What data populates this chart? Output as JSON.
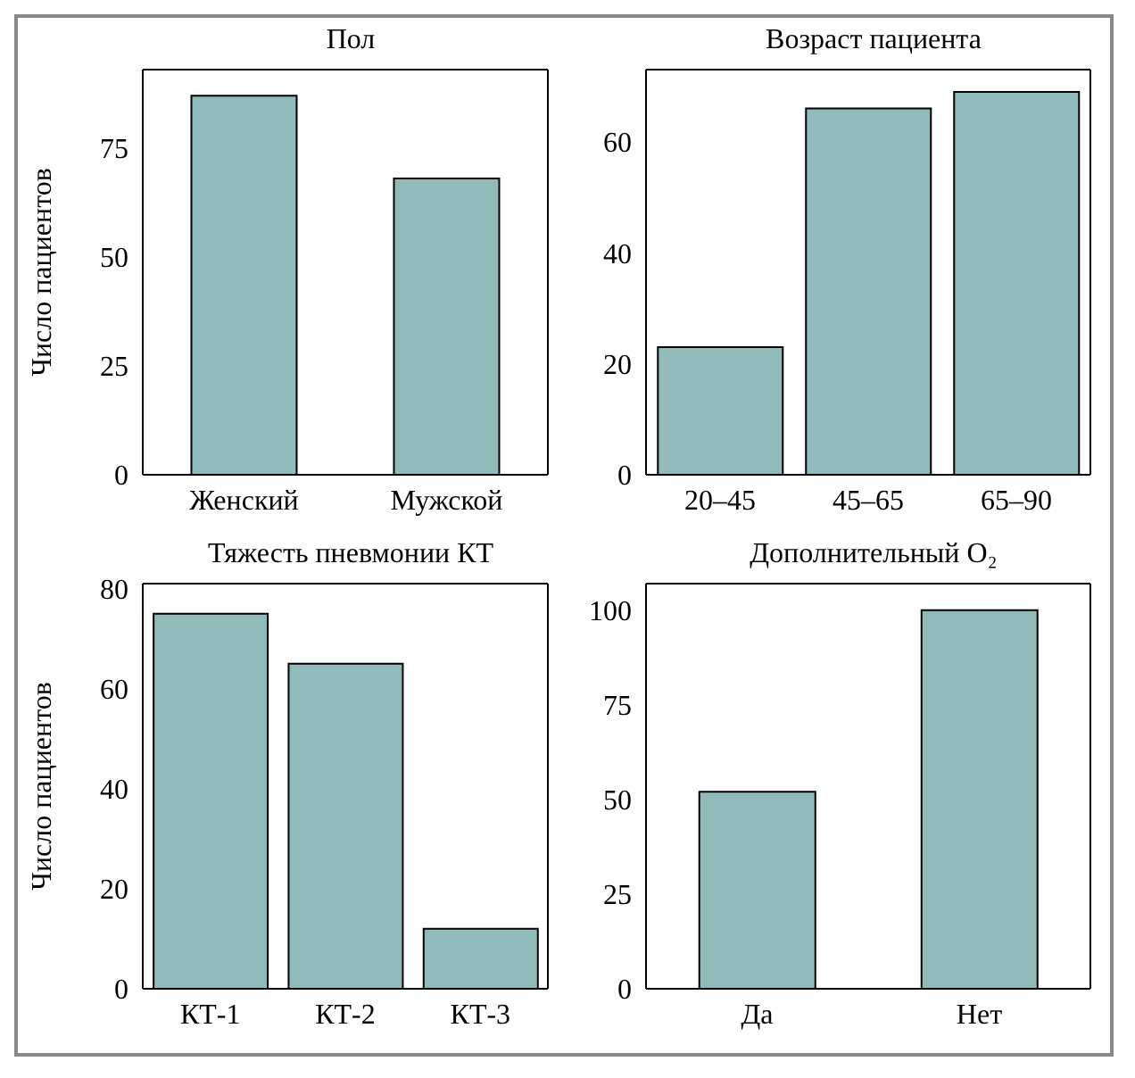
{
  "chart_data": [
    {
      "type": "bar",
      "title": "Пол",
      "ylabel": "Число пациентов",
      "categories": [
        "Женский",
        "Мужской"
      ],
      "values": [
        87,
        68
      ],
      "color": "#91bbbb",
      "ylim": [
        0,
        93
      ],
      "yticks": [
        0,
        25,
        50,
        75
      ],
      "grid": false
    },
    {
      "type": "bar",
      "title": "Возраст пациента",
      "categories": [
        "20–45",
        "45–65",
        "65–90"
      ],
      "values": [
        23,
        66,
        69
      ],
      "color": "#91bbbb",
      "ylim": [
        0,
        73
      ],
      "yticks": [
        0,
        20,
        40,
        60
      ],
      "grid": false
    },
    {
      "type": "bar",
      "title": "Тяжесть пневмонии КТ",
      "ylabel": "Число пациентов",
      "categories": [
        "КТ-1",
        "КТ-2",
        "КТ-3"
      ],
      "values": [
        75,
        65,
        12
      ],
      "color": "#91bbbb",
      "ylim": [
        0,
        81
      ],
      "yticks": [
        0,
        20,
        40,
        60,
        80
      ],
      "grid": false
    },
    {
      "type": "bar",
      "title": "Дополнительный O₂",
      "categories": [
        "Да",
        "Нет"
      ],
      "values": [
        52,
        100
      ],
      "color": "#91bbbb",
      "ylim": [
        0,
        107
      ],
      "yticks": [
        0,
        25,
        50,
        75,
        100
      ],
      "grid": false
    }
  ]
}
